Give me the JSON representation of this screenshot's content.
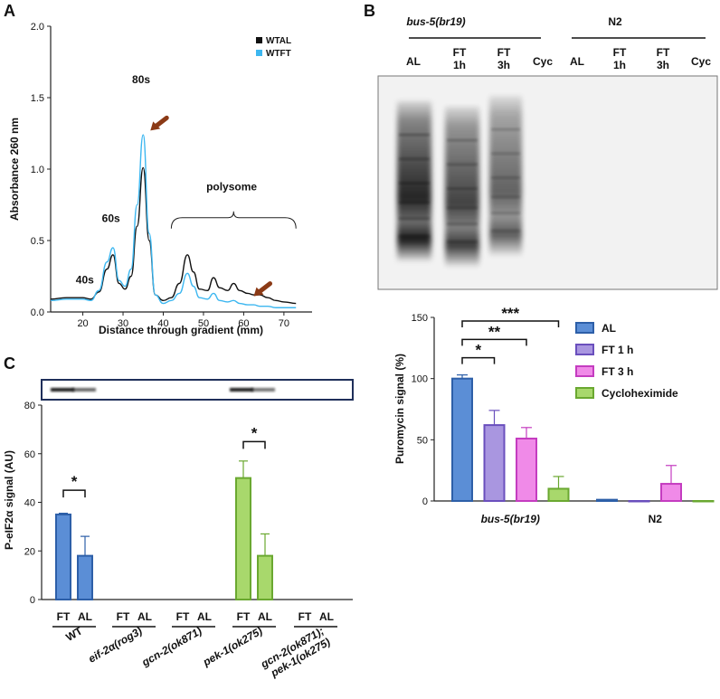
{
  "panels": {
    "a": "A",
    "b": "B",
    "c": "C"
  },
  "chart_data": [
    {
      "id": "A",
      "type": "line",
      "xlabel": "Distance through gradient (mm)",
      "ylabel": "Absorbance 260 nm",
      "xlim": [
        12,
        77
      ],
      "ylim": [
        0,
        2.0
      ],
      "xticks": [
        "20",
        "30",
        "40",
        "50",
        "60",
        "70"
      ],
      "yticks": [
        "0.0",
        "0.5",
        "1.0",
        "1.5",
        "2.0"
      ],
      "legend_position": "top-right",
      "series": [
        {
          "name": "WTAL",
          "color": "#111111",
          "x": [
            12,
            16,
            20,
            22,
            24,
            26,
            27.5,
            29,
            30.5,
            32,
            33.5,
            35,
            36.5,
            38,
            40,
            42,
            44,
            46,
            47.5,
            49,
            51,
            52.5,
            54,
            56,
            57.5,
            59,
            61,
            62.5,
            64,
            66,
            68,
            70,
            73
          ],
          "y": [
            0.09,
            0.1,
            0.1,
            0.09,
            0.14,
            0.3,
            0.4,
            0.2,
            0.16,
            0.25,
            0.6,
            1.01,
            0.5,
            0.12,
            0.08,
            0.1,
            0.2,
            0.4,
            0.28,
            0.16,
            0.15,
            0.24,
            0.17,
            0.15,
            0.2,
            0.15,
            0.13,
            0.12,
            0.12,
            0.1,
            0.08,
            0.07,
            0.06
          ]
        },
        {
          "name": "WTFT",
          "color": "#3db7f0",
          "x": [
            12,
            16,
            20,
            22,
            24,
            26,
            27.5,
            29,
            30.5,
            32,
            33.5,
            35,
            36.5,
            38,
            40,
            42,
            44,
            46,
            47.5,
            49,
            51,
            52.5,
            54,
            56,
            57.5,
            59,
            61,
            62.5,
            64,
            66,
            68,
            70,
            73
          ],
          "y": [
            0.08,
            0.09,
            0.09,
            0.08,
            0.15,
            0.35,
            0.45,
            0.22,
            0.18,
            0.3,
            0.75,
            1.24,
            0.55,
            0.12,
            0.06,
            0.08,
            0.13,
            0.27,
            0.18,
            0.1,
            0.09,
            0.13,
            0.08,
            0.07,
            0.08,
            0.06,
            0.05,
            0.05,
            0.04,
            0.04,
            0.03,
            0.03,
            0.03
          ]
        }
      ],
      "annotations": [
        {
          "text": "40s",
          "x": 20.5,
          "y": 0.2
        },
        {
          "text": "60s",
          "x": 27.0,
          "y": 0.63
        },
        {
          "text": "80s",
          "x": 34.5,
          "y": 1.6
        },
        {
          "text": "polysome",
          "x": 57.0,
          "y": 0.85
        }
      ],
      "arrows": [
        {
          "x": 36.8,
          "y": 1.27
        },
        {
          "x": 62.5,
          "y": 0.11
        }
      ],
      "brace": {
        "x1": 42,
        "x2": 73,
        "y": 0.66
      }
    },
    {
      "id": "B-bar",
      "type": "bar",
      "ylabel": "Puromycin signal (%)",
      "ylim": [
        0,
        150
      ],
      "yticks": [
        "0",
        "50",
        "100",
        "150"
      ],
      "categories": [
        "bus-5(br19)",
        "N2"
      ],
      "legend_position": "top-right",
      "series": [
        {
          "name": "AL",
          "fill": "#5b8ed6",
          "stroke": "#2d5fa8",
          "values": [
            100,
            1
          ],
          "errors": [
            3,
            0
          ]
        },
        {
          "name": "FT 1 h",
          "fill": "#a996e0",
          "stroke": "#6a4fbd",
          "values": [
            62,
            0
          ],
          "errors": [
            12,
            0
          ]
        },
        {
          "name": "FT 3 h",
          "fill": "#f08ae8",
          "stroke": "#c43cc0",
          "values": [
            51,
            14
          ],
          "errors": [
            9,
            15
          ]
        },
        {
          "name": "Cycloheximide",
          "fill": "#a8d86c",
          "stroke": "#6aa830",
          "values": [
            10,
            0
          ],
          "errors": [
            10,
            0
          ]
        }
      ],
      "significance": [
        {
          "from": 0,
          "to": 1,
          "label": "*",
          "y": 117
        },
        {
          "from": 0,
          "to": 2,
          "label": "**",
          "y": 132
        },
        {
          "from": 0,
          "to": 3,
          "label": "***",
          "y": 147
        }
      ]
    },
    {
      "id": "C",
      "type": "bar",
      "ylabel": "P-eIF2α signal (AU)",
      "ylim": [
        0,
        80
      ],
      "yticks": [
        "0",
        "20",
        "40",
        "60",
        "80"
      ],
      "categories": [
        "WT",
        "eif-2α(rog3)",
        "gcn-2(ok871)",
        "pek-1(ok275)",
        "gcn-2(ok871); pek-1(ok275)"
      ],
      "bar_labels": [
        "FT",
        "AL"
      ],
      "values": [
        [
          35,
          18
        ],
        [
          0,
          0
        ],
        [
          0,
          0
        ],
        [
          50,
          18
        ],
        [
          0,
          0
        ]
      ],
      "errors": [
        [
          0.5,
          8
        ],
        [
          0,
          0
        ],
        [
          0,
          0
        ],
        [
          7,
          9
        ],
        [
          0,
          0
        ]
      ],
      "significance": [
        {
          "group": 0,
          "label": "*",
          "y": 45
        },
        {
          "group": 3,
          "label": "*",
          "y": 65
        }
      ]
    }
  ],
  "blot_b": {
    "group_labels": [
      "bus-5(br19)",
      "N2"
    ],
    "lanes": [
      [
        "AL"
      ],
      [
        "FT",
        "1h"
      ],
      [
        "FT",
        "3h"
      ],
      [
        "Cyc"
      ],
      [
        "AL"
      ],
      [
        "FT",
        "1h"
      ],
      [
        "FT",
        "3h"
      ],
      [
        "Cyc"
      ]
    ]
  }
}
